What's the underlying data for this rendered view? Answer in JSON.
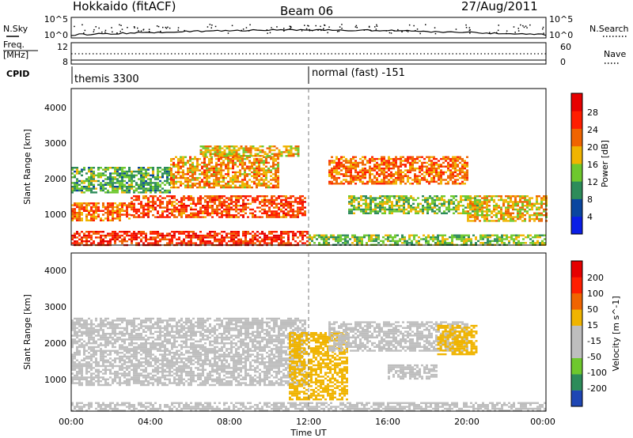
{
  "header": {
    "title": "Hokkaido (fitACF)",
    "beam": "Beam 06",
    "date": "27/Aug/2011"
  },
  "top_panels": {
    "nsky_label": "N.Sky",
    "nsearch_label": "N.Search",
    "count_ticks": [
      "10^5",
      "10^0"
    ],
    "freq_label_line1": "Freq.",
    "freq_label_line2": "[MHz]",
    "freq_ticks": [
      "12",
      "8"
    ],
    "nave_label": "Nave",
    "nave_ticks": [
      "60",
      "0"
    ],
    "cpid_label": "CPID",
    "cpid_segments": [
      {
        "start_hour": 0,
        "label": "themis 3300"
      },
      {
        "start_hour": 12,
        "label": "normal (fast) -151"
      }
    ]
  },
  "x_axis": {
    "label": "Time UT",
    "ticks": [
      "00:00",
      "04:00",
      "08:00",
      "12:00",
      "16:00",
      "20:00",
      "00:00"
    ],
    "range_hours": [
      0,
      24
    ]
  },
  "chart_data": [
    {
      "type": "heatmap",
      "panel": "power",
      "ylabel": "Slant Range [km]",
      "yticks": [
        "1000",
        "2000",
        "3000",
        "4000"
      ],
      "ylim": [
        200,
        4600
      ],
      "colorbar": {
        "label": "Power [dB]",
        "ticks": [
          "4",
          "8",
          "12",
          "16",
          "20",
          "24",
          "28"
        ],
        "range": [
          0,
          32
        ],
        "colors": [
          "#0a1ee6",
          "#0a46a0",
          "#2d8c5a",
          "#6ec82d",
          "#f0b400",
          "#f06400",
          "#ff1e00",
          "#e60000"
        ]
      },
      "features": [
        {
          "start_hour": 0.0,
          "end_hour": 3.0,
          "range_km": [
            900,
            1400
          ],
          "level": 22
        },
        {
          "start_hour": 3.0,
          "end_hour": 11.8,
          "range_km": [
            1000,
            1600
          ],
          "level": 24
        },
        {
          "start_hour": 0.0,
          "end_hour": 5.0,
          "range_km": [
            1700,
            2400
          ],
          "level": 12
        },
        {
          "start_hour": 5.0,
          "end_hour": 10.5,
          "range_km": [
            1800,
            2700
          ],
          "level": 20
        },
        {
          "start_hour": 6.5,
          "end_hour": 11.5,
          "range_km": [
            2700,
            3000
          ],
          "level": 18
        },
        {
          "start_hour": 13.0,
          "end_hour": 20.0,
          "range_km": [
            1900,
            2700
          ],
          "level": 22
        },
        {
          "start_hour": 14.0,
          "end_hour": 20.5,
          "range_km": [
            1100,
            1600
          ],
          "level": 14
        },
        {
          "start_hour": 20.0,
          "end_hour": 24.0,
          "range_km": [
            900,
            1600
          ],
          "level": 18
        },
        {
          "start_hour": 12.0,
          "end_hour": 24.0,
          "range_km": [
            200,
            500
          ],
          "level": 14
        },
        {
          "start_hour": 0.0,
          "end_hour": 12.0,
          "range_km": [
            200,
            600
          ],
          "level": 26
        }
      ]
    },
    {
      "type": "heatmap",
      "panel": "velocity",
      "ylabel": "Slant Range [km]",
      "yticks": [
        "1000",
        "2000",
        "3000",
        "4000"
      ],
      "ylim": [
        200,
        4600
      ],
      "colorbar": {
        "label": "Velocity [m s^-1]",
        "ticks": [
          "200",
          "100",
          "50",
          "15",
          "-15",
          "-50",
          "-100",
          "-200"
        ],
        "range": [
          -250,
          250
        ],
        "colors": [
          "#1e46b4",
          "#2d8c5a",
          "#6ec82d",
          "#bebebe",
          "#bebebe",
          "#f0b400",
          "#f06400",
          "#ff1e00",
          "#e60000"
        ]
      },
      "features": [
        {
          "start_hour": 0.0,
          "end_hour": 11.8,
          "range_km": [
            900,
            2800
          ],
          "level": 0
        },
        {
          "start_hour": 11.0,
          "end_hour": 14.0,
          "range_km": [
            500,
            2400
          ],
          "level": 60
        },
        {
          "start_hour": 13.0,
          "end_hour": 20.0,
          "range_km": [
            1900,
            2700
          ],
          "level": 0
        },
        {
          "start_hour": 18.5,
          "end_hour": 20.5,
          "range_km": [
            1800,
            2600
          ],
          "level": 60
        },
        {
          "start_hour": 16.0,
          "end_hour": 18.5,
          "range_km": [
            1100,
            1500
          ],
          "level": -60
        },
        {
          "start_hour": 0.0,
          "end_hour": 24.0,
          "range_km": [
            200,
            450
          ],
          "level": -40
        }
      ]
    }
  ]
}
